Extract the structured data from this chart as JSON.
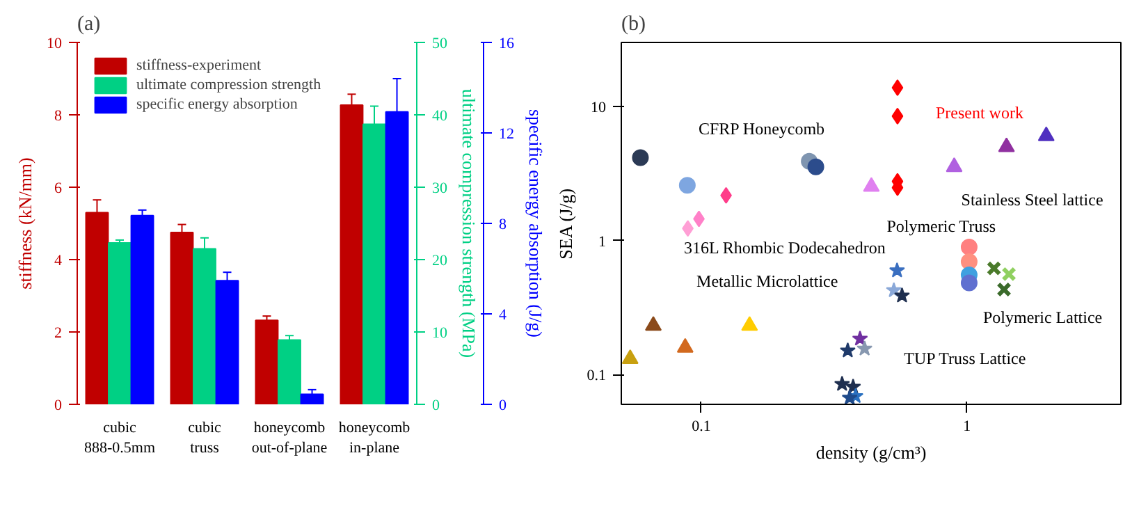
{
  "chart_data": [
    {
      "type": "bar",
      "title": "(a)",
      "ylabel": "stiffness (kN/mm)",
      "y2label": "ultimate compression strength (MPa)",
      "y3label": "specific energy absorption (J/g)",
      "categories": [
        "cubic\n888-0.5mm",
        "cubic\ntruss",
        "honeycomb\nout-of-plane",
        "honeycomb\nin-plane"
      ],
      "series": [
        {
          "name": "stiffness-experiment",
          "color": "#c00000",
          "values": [
            5.3,
            4.75,
            2.32,
            8.27
          ],
          "errors": [
            0.35,
            0.22,
            0.12,
            0.3
          ]
        },
        {
          "name": "ultimate compression strength",
          "color": "#00d084",
          "axis": "y2",
          "values": [
            22.3,
            21.5,
            8.9,
            38.7
          ],
          "errors": [
            0.4,
            1.5,
            0.6,
            2.5
          ]
        },
        {
          "name": "specific energy absorption",
          "color": "#0000ff",
          "axis": "y3",
          "values": [
            8.35,
            5.47,
            0.45,
            12.93
          ],
          "errors": [
            0.24,
            0.37,
            0.2,
            1.47
          ]
        }
      ],
      "ylim": [
        0,
        10
      ],
      "yticks": [
        0,
        2,
        4,
        6,
        8,
        10
      ],
      "y2lim": [
        0,
        50
      ],
      "y2ticks": [
        0,
        10,
        20,
        30,
        40,
        50
      ],
      "y3lim": [
        0,
        16
      ],
      "y3ticks": [
        0,
        4,
        8,
        12,
        16
      ],
      "legend": "top left",
      "grid": false
    },
    {
      "type": "scatter",
      "title": "(b)",
      "xlabel": "density (g/cm³)",
      "ylabel": "SEA (J/g)",
      "log": "xy",
      "xlim": [
        0.05,
        3.8
      ],
      "ylim": [
        0.06,
        30
      ],
      "xticks": [
        0.1,
        1
      ],
      "yticks": [
        0.1,
        1,
        10
      ],
      "grid": false,
      "series": [
        {
          "name": "CFRP Honeycomb",
          "marker": "circle",
          "x": [
            0.059,
            0.0886,
            0.255,
            0.27
          ],
          "values": [
            4.15,
            2.58,
            3.9,
            3.54
          ],
          "colors": [
            "#2b3a55",
            "#7ea6e0",
            "#7f95b0",
            "#2c4c8c"
          ]
        },
        {
          "name": "316L Rhombic Dodecahedron",
          "marker": "diamond",
          "x": [
            0.089,
            0.098,
            0.124
          ],
          "values": [
            1.23,
            1.45,
            2.17
          ],
          "colors": [
            "#ff9fd5",
            "#ff80c8",
            "#ff3d8a"
          ]
        },
        {
          "name": "Metallic Microlattice",
          "marker": "triangle",
          "x": [
            0.054,
            0.066,
            0.087,
            0.152
          ],
          "values": [
            0.131,
            0.232,
            0.159,
            0.232
          ],
          "colors": [
            "#c8a010",
            "#8b4a1a",
            "#d2691e",
            "#ffcc00"
          ]
        },
        {
          "name": "TUP Truss Lattice",
          "marker": "star",
          "x": [
            0.546,
            0.531,
            0.57,
            0.396,
            0.412,
            0.356,
            0.339,
            0.373,
            0.381,
            0.362
          ],
          "values": [
            0.597,
            0.425,
            0.388,
            0.185,
            0.156,
            0.151,
            0.085,
            0.081,
            0.069,
            0.067
          ],
          "colors": [
            "#3a6fc0",
            "#8aa8d8",
            "#1f2f4f",
            "#7030a0",
            "#8898b0",
            "#1f3a6a",
            "#1f2f4f",
            "#1f2f4f",
            "#2a70c0",
            "#1f4a8a"
          ]
        },
        {
          "name": "Present work",
          "color": "#ff0000",
          "marker": "diamond",
          "x": [
            0.548,
            0.548,
            0.548,
            0.548
          ],
          "values": [
            13.8,
            8.46,
            2.76,
            2.48
          ],
          "colors": [
            "#ff0000",
            "#ff0000",
            "#ff0000",
            "#ff0000"
          ]
        },
        {
          "name": "Stainless Steel lattice",
          "marker": "triangle",
          "x": [
            0.437,
            0.896,
            1.41,
            1.99
          ],
          "values": [
            2.52,
            3.54,
            4.98,
            6.02
          ],
          "colors": [
            "#e080f0",
            "#b060e0",
            "#9030a0",
            "#5030c0"
          ]
        },
        {
          "name": "Polymeric Truss",
          "marker": "circle",
          "x": [
            1.02,
            1.02,
            1.02,
            1.02
          ],
          "values": [
            0.893,
            0.695,
            0.554,
            0.483
          ],
          "colors": [
            "#ff8080",
            "#ff9080",
            "#40a0e0",
            "#6070d0"
          ]
        },
        {
          "name": "Polymeric Lattice",
          "marker": "cross",
          "x": [
            1.265,
            1.44,
            1.38
          ],
          "values": [
            0.62,
            0.562,
            0.431
          ],
          "colors": [
            "#4a7a2a",
            "#90d060",
            "#3a6a2a"
          ]
        }
      ]
    }
  ]
}
